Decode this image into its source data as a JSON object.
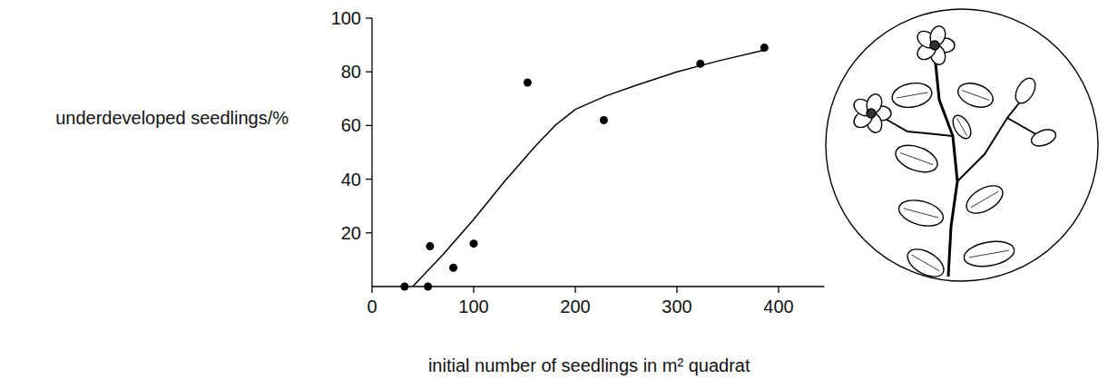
{
  "chart_data": {
    "type": "scatter",
    "x_label": "initial number of seedlings in m² quadrat",
    "y_label": "underdeveloped seedlings/%",
    "xlim": [
      0,
      445
    ],
    "ylim": [
      0,
      100
    ],
    "xticks": [
      0,
      100,
      200,
      300,
      400
    ],
    "yticks": [
      20,
      40,
      60,
      80,
      100
    ],
    "grid": false,
    "series": [
      {
        "type": "scatter",
        "marker": "circle",
        "color": "#000000",
        "x": [
          32,
          55,
          57,
          80,
          100,
          153,
          228,
          323,
          386
        ],
        "values": [
          0,
          0,
          15,
          7,
          16,
          76,
          62,
          83,
          89
        ]
      },
      {
        "type": "line",
        "line_style": "solid",
        "color": "#000000",
        "x": [
          40,
          70,
          100,
          130,
          160,
          180,
          200,
          230,
          260,
          300,
          340,
          385
        ],
        "values": [
          0,
          12,
          25,
          39,
          52,
          60,
          66,
          71,
          75,
          80,
          84,
          88
        ]
      }
    ]
  }
}
